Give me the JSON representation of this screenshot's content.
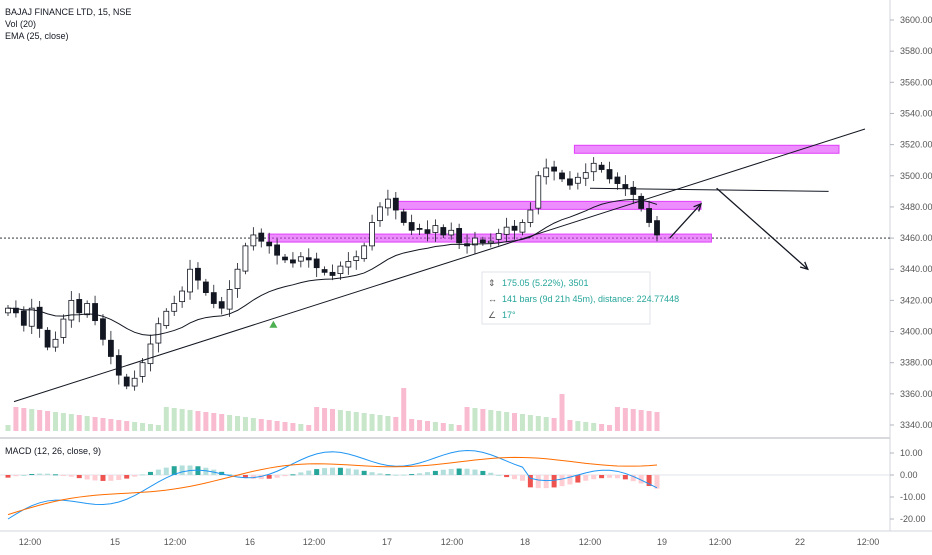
{
  "header": {
    "symbol": "BAJAJ FINANCE LTD, 15, NSE",
    "vol": "Vol (20)",
    "ema": "EMA (25, close)",
    "macd": "MACD (12, 26, close, 9)"
  },
  "measure": {
    "line1": "175.05 (5.22%), 3501",
    "line2": "141 bars (9d 21h 45m), distance: 224.77448",
    "line3": "17°"
  },
  "colors": {
    "up": "#26a69a",
    "down": "#131722",
    "candle_up_fill": "#ffffff",
    "zone": "#e040fb",
    "ema": "#131722",
    "macd_line": "#2196f3",
    "signal_line": "#ff6d00",
    "hist_pos_strong": "#26a69a",
    "hist_pos_weak": "#b2dfdb",
    "hist_neg_strong": "#ef5350",
    "hist_neg_weak": "#ffcdd2",
    "vol_up": "#c8e6c9",
    "vol_down": "#f8bbd0"
  },
  "chart_data": [
    {
      "type": "candlestick",
      "title": "BAJAJ FINANCE LTD, 15, NSE",
      "yticks": [
        "3340.00",
        "3360.00",
        "3380.00",
        "3400.00",
        "3420.00",
        "3440.00",
        "3460.00",
        "3480.00",
        "3500.00",
        "3520.00",
        "3540.00",
        "3560.00",
        "3580.00",
        "3600.00"
      ],
      "xticks": [
        "12:00",
        "15",
        "12:00",
        "16",
        "12:00",
        "17",
        "12:00",
        "18",
        "12:00",
        "19",
        "12:00",
        "22",
        "12:00"
      ],
      "ylim": [
        3334,
        3610
      ],
      "current_price": 3460,
      "price_path": [
        3415,
        3412,
        3404,
        3415,
        3402,
        3390,
        3395,
        3408,
        3420,
        3412,
        3418,
        3407,
        3395,
        3384,
        3372,
        3365,
        3370,
        3380,
        3392,
        3405,
        3413,
        3418,
        3426,
        3440,
        3433,
        3425,
        3418,
        3415,
        3427,
        3440,
        3455,
        3462,
        3458,
        3455,
        3449,
        3446,
        3444,
        3448,
        3446,
        3441,
        3438,
        3436,
        3442,
        3445,
        3448,
        3455,
        3470,
        3480,
        3485,
        3478,
        3470,
        3465,
        3466,
        3463,
        3468,
        3462,
        3465,
        3457,
        3455,
        3460,
        3457,
        3458,
        3463,
        3467,
        3465,
        3470,
        3478,
        3500,
        3505,
        3503,
        3498,
        3494,
        3499,
        3502,
        3508,
        3504,
        3498,
        3495,
        3492,
        3488,
        3479,
        3470,
        3462
      ],
      "trendlines": [
        {
          "from": [
            "14 13:00",
            3355
          ],
          "to": [
            "22 15:30",
            3530
          ]
        },
        {
          "from": [
            "18 15:30",
            3492
          ],
          "to": [
            "22 12:00",
            3490
          ]
        }
      ],
      "zones": [
        {
          "y": 3460,
          "from": "16 11:00",
          "to": "19 14:00"
        },
        {
          "y": 3481,
          "from": "17 10:00",
          "to": "19 13:00"
        },
        {
          "y": 3517,
          "from": "18 14:00",
          "to": "22 13:00"
        }
      ],
      "arrows": [
        {
          "from": [
            "19 10:00",
            3460
          ],
          "to": [
            "19 13:00",
            3482
          ]
        },
        {
          "from": [
            "19 14:30",
            3492
          ],
          "to": [
            "20 10:00",
            3440
          ]
        }
      ],
      "signal_marker": {
        "x": "16 11:30",
        "y": 3405
      }
    },
    {
      "type": "bar",
      "title": "MACD (12, 26, close, 9)",
      "yticks": [
        "10.00",
        "0.00",
        "-10.00",
        "-20.00"
      ],
      "ylim": [
        -25,
        15
      ]
    }
  ]
}
